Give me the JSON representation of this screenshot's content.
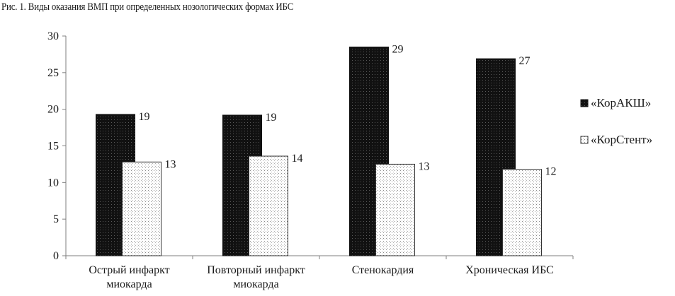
{
  "caption": "Рис. 1. Виды оказания ВМП при определенных нозологических формах ИБС",
  "colors": {
    "series_dark": "#111111",
    "series_light_fill": "#ffffff",
    "series_light_dot": "#8a8a8a",
    "axis": "#7f7f7f"
  },
  "chart_data": {
    "type": "bar",
    "title": "",
    "xlabel": "",
    "ylabel": "",
    "ylim": [
      0,
      30
    ],
    "yticks": [
      0,
      5,
      10,
      15,
      20,
      25,
      30
    ],
    "grid": false,
    "legend_position": "right",
    "categories": [
      [
        "Острый инфаркт",
        "миокарда"
      ],
      [
        "Повторный инфаркт",
        "миокарда"
      ],
      [
        "Стенокардия"
      ],
      [
        "Хроническая ИБС"
      ]
    ],
    "series": [
      {
        "name": "«КорАКШ»",
        "values": [
          19,
          19,
          29,
          27
        ],
        "labels": [
          "19",
          "19",
          "29",
          "27"
        ],
        "plotted": [
          19.3,
          19.2,
          28.5,
          26.9
        ]
      },
      {
        "name": "«КорСтент»",
        "values": [
          13,
          14,
          13,
          12
        ],
        "labels": [
          "13",
          "14",
          "13",
          "12"
        ],
        "plotted": [
          12.8,
          13.6,
          12.5,
          11.8
        ]
      }
    ]
  }
}
